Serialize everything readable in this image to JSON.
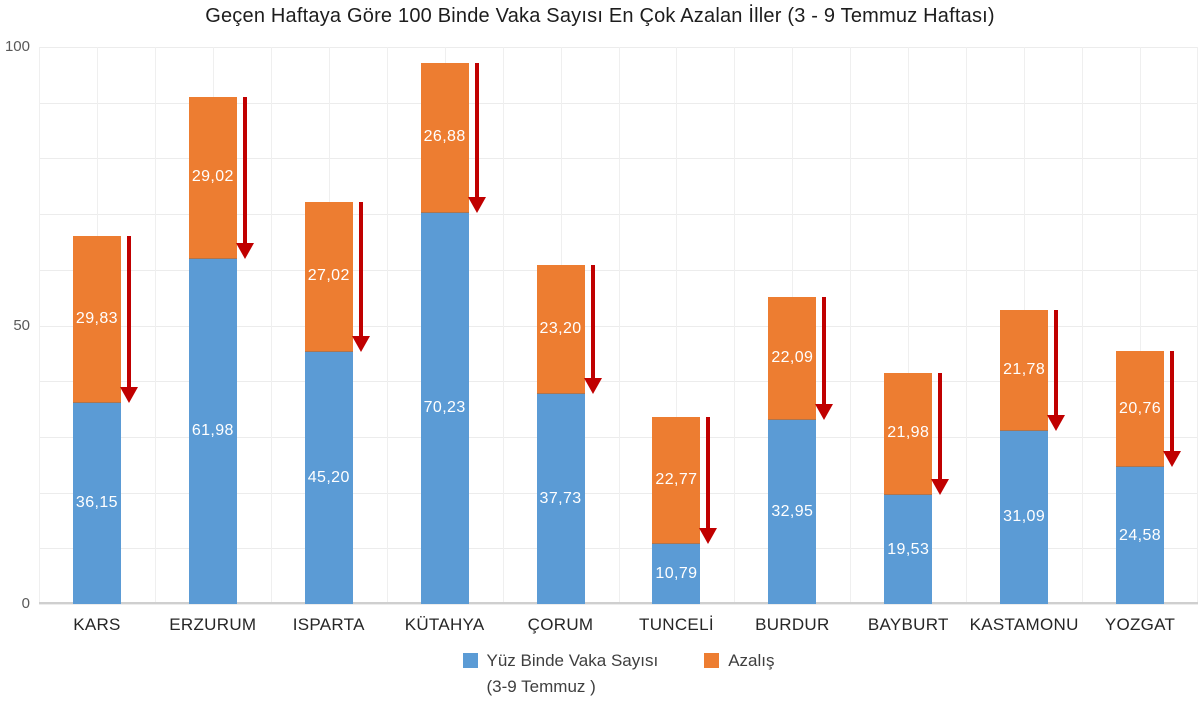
{
  "chart_data": {
    "type": "bar",
    "stacked": true,
    "title": "Geçen Haftaya Göre 100 Binde Vaka Sayısı En Çok Azalan İller (3 - 9 Temmuz Haftası)",
    "categories": [
      "KARS",
      "ERZURUM",
      "ISPARTA",
      "KÜTAHYA",
      "ÇORUM",
      "TUNCELİ",
      "BURDUR",
      "BAYBURT",
      "KASTAMONU",
      "YOZGAT"
    ],
    "series": [
      {
        "name": "Yüz Binde Vaka Sayısı (3-9 Temmuz )",
        "legend_lines": [
          "Yüz Binde Vaka Sayısı",
          "(3-9 Temmuz )"
        ],
        "color": "#5B9BD5",
        "values": [
          36.15,
          61.98,
          45.2,
          70.23,
          37.73,
          10.79,
          32.95,
          19.53,
          31.09,
          24.58
        ]
      },
      {
        "name": "Azalış",
        "legend_lines": [
          "Azalış"
        ],
        "color": "#ED7D31",
        "values": [
          29.83,
          29.02,
          27.02,
          26.88,
          23.2,
          22.77,
          22.09,
          21.98,
          21.78,
          20.76
        ]
      }
    ],
    "ylim": [
      0,
      100
    ],
    "y_ticks": [
      0,
      50,
      100
    ],
    "gridline_step_y": 10,
    "grid": true,
    "legend_position": "bottom",
    "decimal_separator": ",",
    "value_decimals": 2,
    "annotations": {
      "decrease_arrows": true,
      "arrow_color": "#C00000"
    }
  }
}
